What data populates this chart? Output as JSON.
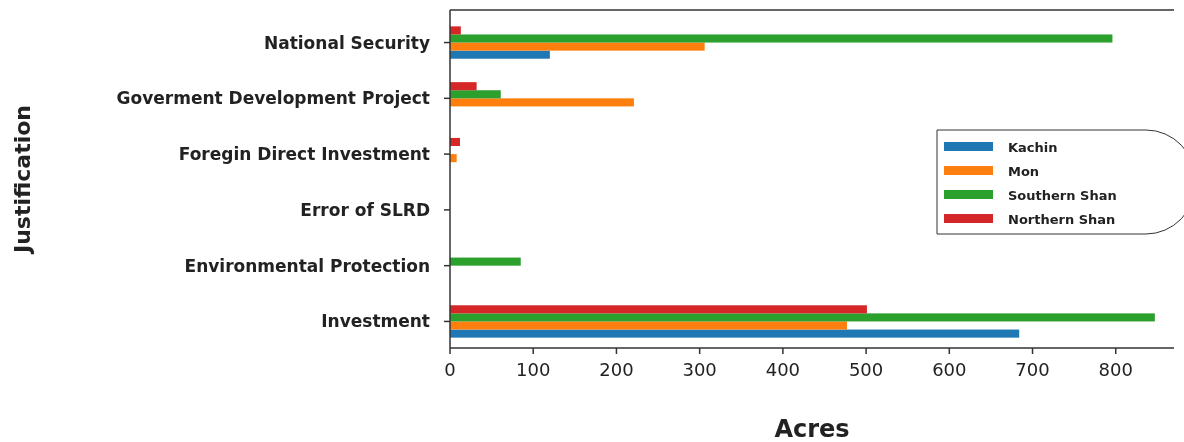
{
  "chart_data": {
    "type": "bar",
    "orientation": "horizontal",
    "xlabel": "Acres",
    "ylabel": "Justification",
    "categories": [
      "National Security",
      "Goverment Development Project",
      "Foregin Direct Investment",
      "Error of SLRD",
      "Environmental Protection",
      "Investment"
    ],
    "series": [
      {
        "name": "Kachin",
        "color": "#1f77b4",
        "values": [
          120,
          0,
          0,
          0,
          0,
          684
        ]
      },
      {
        "name": "Mon",
        "color": "#ff7f0e",
        "values": [
          306,
          221,
          8,
          0,
          0,
          477
        ]
      },
      {
        "name": "Southern Shan",
        "color": "#2ca02c",
        "values": [
          796,
          61,
          0,
          0,
          85,
          847
        ]
      },
      {
        "name": "Northern Shan",
        "color": "#d62728",
        "values": [
          13,
          32,
          12,
          0,
          0,
          501
        ]
      }
    ],
    "xlim": [
      0,
      870
    ],
    "xticks": [
      0,
      100,
      200,
      300,
      400,
      500,
      600,
      700,
      800
    ],
    "legend": "right",
    "grid": false
  }
}
